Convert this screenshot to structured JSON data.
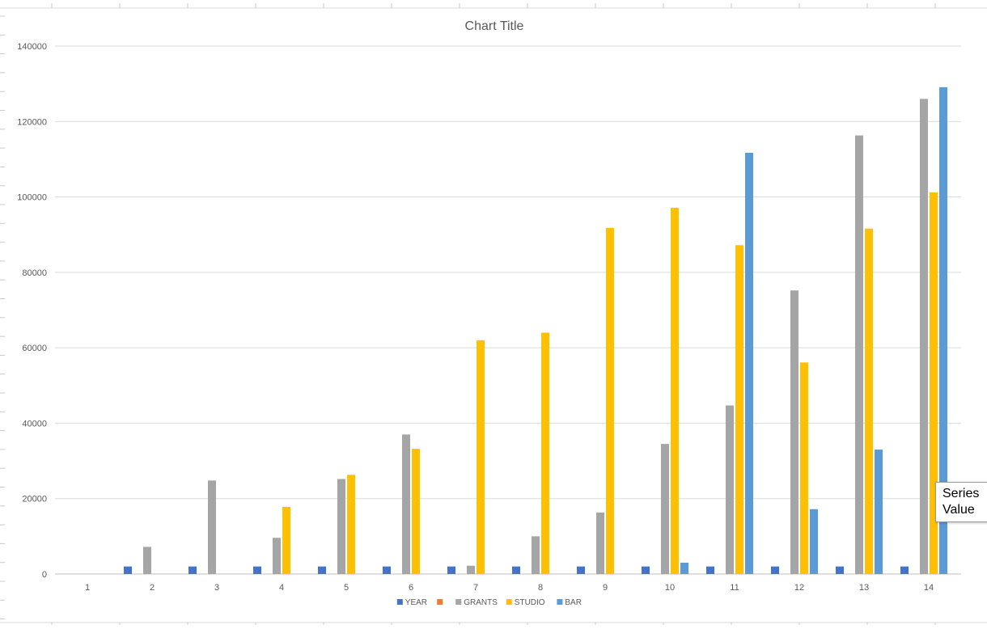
{
  "chart_data": {
    "type": "bar",
    "title": "Chart Title",
    "xlabel": "",
    "ylabel": "",
    "categories": [
      "1",
      "2",
      "3",
      "4",
      "5",
      "6",
      "7",
      "8",
      "9",
      "10",
      "11",
      "12",
      "13",
      "14"
    ],
    "ylim": [
      0,
      140000
    ],
    "yticks": [
      0,
      20000,
      40000,
      60000,
      80000,
      100000,
      120000,
      140000
    ],
    "grid": true,
    "legend_position": "bottom",
    "series": [
      {
        "name": "YEAR",
        "color": "#4472c4",
        "values": [
          0,
          2000,
          2000,
          2000,
          2000,
          2000,
          2000,
          2000,
          2000,
          2000,
          2000,
          2000,
          2000,
          2000
        ]
      },
      {
        "name": "",
        "color": "#ed7d31",
        "values": [
          0,
          0,
          0,
          0,
          0,
          0,
          0,
          0,
          0,
          0,
          0,
          0,
          0,
          0
        ]
      },
      {
        "name": "GRANTS",
        "color": "#a5a5a5",
        "values": [
          0,
          7200,
          24800,
          9600,
          25200,
          37000,
          2200,
          10000,
          16300,
          34500,
          44700,
          75200,
          116300,
          126000
        ]
      },
      {
        "name": "STUDIO",
        "color": "#ffc000",
        "values": [
          0,
          0,
          0,
          17800,
          26300,
          33200,
          62000,
          64000,
          91800,
          97100,
          87200,
          56100,
          91600,
          101200
        ]
      },
      {
        "name": "BAR",
        "color": "#5b9bd5",
        "values": [
          0,
          0,
          0,
          0,
          0,
          0,
          0,
          0,
          0,
          3000,
          111700,
          17200,
          33000,
          129100
        ]
      }
    ]
  },
  "tooltip": {
    "line1": "Series",
    "line2": "Value"
  }
}
